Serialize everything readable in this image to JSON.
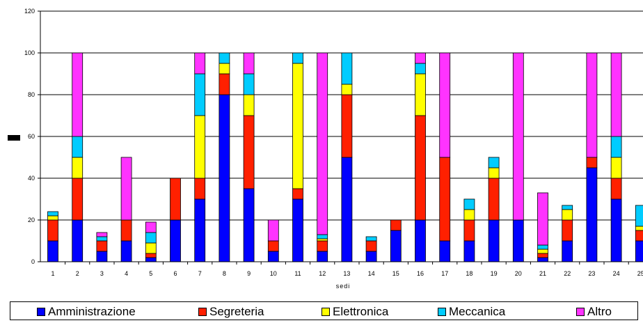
{
  "chart_data": {
    "type": "bar",
    "stacked": true,
    "title": "",
    "xlabel": "sedi",
    "ylabel": "",
    "ylim": [
      0,
      120
    ],
    "yticks": [
      0,
      20,
      40,
      60,
      80,
      100,
      120
    ],
    "grid": true,
    "legend_position": "bottom",
    "categories": [
      "1",
      "2",
      "3",
      "4",
      "5",
      "6",
      "7",
      "8",
      "9",
      "10",
      "11",
      "12",
      "13",
      "14",
      "15",
      "16",
      "17",
      "18",
      "19",
      "20",
      "21",
      "22",
      "23",
      "24",
      "25"
    ],
    "series": [
      {
        "name": "Amministrazione",
        "color": "#0000FF",
        "values": [
          10,
          20,
          5,
          10,
          2,
          20,
          30,
          80,
          35,
          5,
          30,
          5,
          50,
          5,
          15,
          20,
          10,
          10,
          20,
          20,
          2,
          10,
          45,
          30,
          10
        ]
      },
      {
        "name": "Segreteria",
        "color": "#FF2000",
        "values": [
          10,
          20,
          5,
          10,
          2,
          20,
          10,
          10,
          35,
          5,
          5,
          5,
          30,
          5,
          5,
          50,
          40,
          10,
          20,
          0,
          2,
          10,
          5,
          10,
          5
        ]
      },
      {
        "name": "Elettronica",
        "color": "#FFFF00",
        "values": [
          2,
          10,
          0,
          0,
          5,
          0,
          30,
          5,
          10,
          0,
          60,
          1,
          5,
          0,
          0,
          20,
          0,
          5,
          5,
          0,
          2,
          5,
          0,
          10,
          2
        ]
      },
      {
        "name": "Meccanica",
        "color": "#00CCFF",
        "values": [
          2,
          10,
          2,
          0,
          5,
          0,
          20,
          5,
          10,
          0,
          5,
          2,
          15,
          2,
          0,
          5,
          0,
          5,
          5,
          0,
          2,
          2,
          0,
          10,
          10
        ]
      },
      {
        "name": "Altro",
        "color": "#FF33FF",
        "values": [
          0,
          40,
          2,
          30,
          5,
          0,
          10,
          0,
          10,
          10,
          0,
          87,
          0,
          0,
          0,
          5,
          50,
          0,
          0,
          80,
          25,
          0,
          50,
          40,
          0
        ]
      }
    ]
  }
}
